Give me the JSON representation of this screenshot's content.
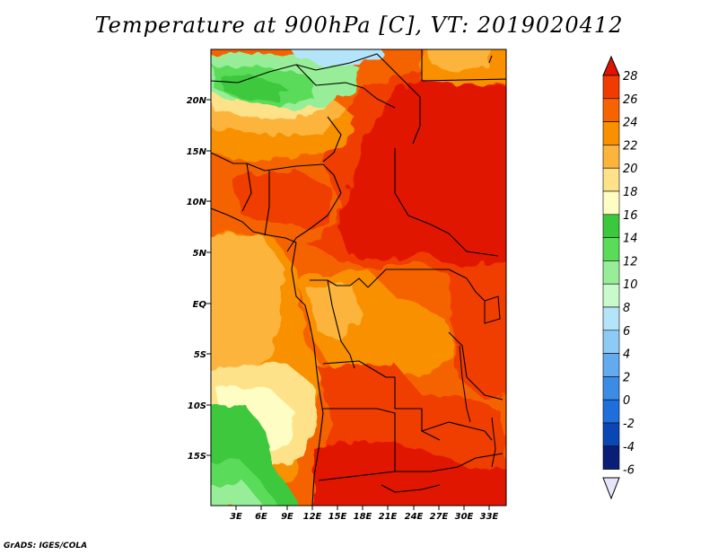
{
  "title": "Temperature at 900hPa [C], VT: 2019020412",
  "credit": "GrADS: IGES/COLA",
  "map": {
    "lat_labels": [
      "20N",
      "15N",
      "10N",
      "5N",
      "EQ",
      "5S",
      "10S",
      "15S"
    ],
    "lon_labels": [
      "3E",
      "6E",
      "9E",
      "12E",
      "15E",
      "18E",
      "21E",
      "24E",
      "27E",
      "30E",
      "33E"
    ],
    "extent": {
      "lon_min": 0,
      "lon_max": 35,
      "lat_min": -20,
      "lat_max": 24.5
    }
  },
  "colorbar": {
    "levels": [
      "28",
      "26",
      "24",
      "22",
      "20",
      "18",
      "16",
      "14",
      "12",
      "10",
      "8",
      "6",
      "4",
      "2",
      "0",
      "-2",
      "-4",
      "-6"
    ],
    "colors": [
      "#e01400",
      "#f03c00",
      "#f56400",
      "#f99000",
      "#fcb43c",
      "#fde28a",
      "#fdfdc4",
      "#3cc83c",
      "#5adc5a",
      "#98ee98",
      "#c8facc",
      "#b4e4fa",
      "#8cccf4",
      "#64aaee",
      "#3c8ce6",
      "#1e6edc",
      "#0a46b4",
      "#0a1e78"
    ],
    "over_color": "#e01400",
    "under_color": "#e6e6fa"
  }
}
